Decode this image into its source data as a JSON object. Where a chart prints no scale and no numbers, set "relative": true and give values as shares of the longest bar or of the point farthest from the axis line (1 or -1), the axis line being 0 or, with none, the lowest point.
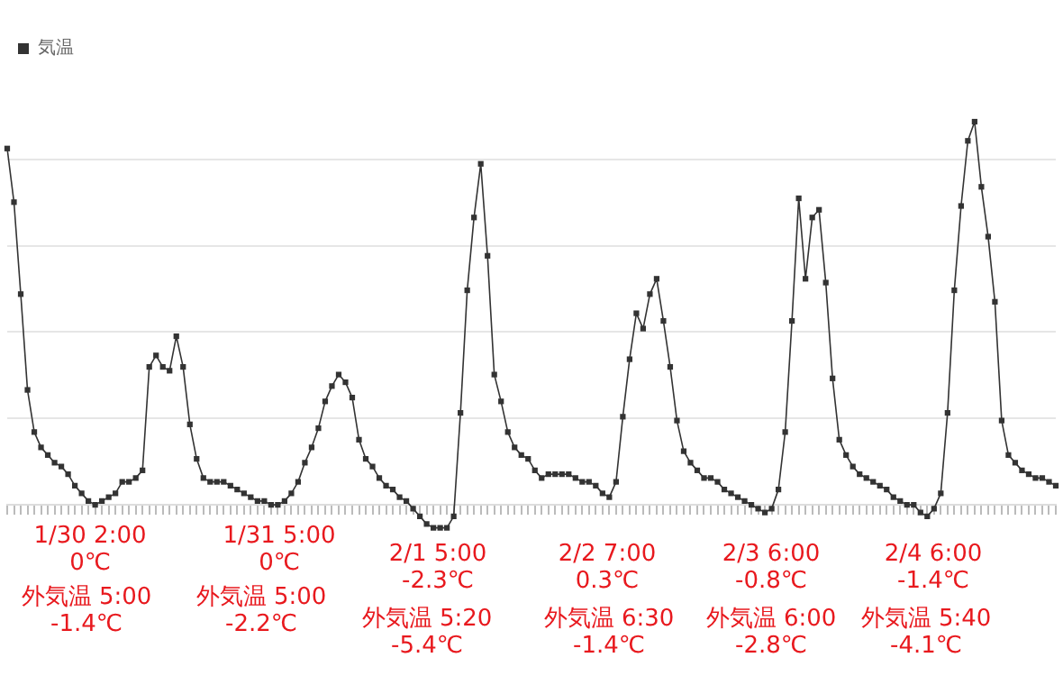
{
  "chart_data": {
    "type": "line",
    "relative": true,
    "grid": "y",
    "legend": "top left",
    "marker": "square",
    "line_style": "solid",
    "categories": [
      null,
      null,
      null,
      null,
      null,
      null,
      null,
      null,
      null,
      null,
      null,
      null,
      null,
      null,
      null,
      null,
      null,
      null,
      null,
      null,
      null,
      null,
      null,
      null,
      null,
      null,
      null,
      null,
      null,
      null,
      null,
      null,
      null,
      null,
      null,
      null,
      null,
      null,
      null,
      null,
      null,
      null,
      null,
      null,
      null,
      null,
      null,
      null,
      null,
      null,
      null,
      null,
      null,
      null,
      null,
      null,
      null,
      null,
      null,
      null,
      null,
      null,
      null,
      null,
      null,
      null,
      null,
      null,
      null,
      null,
      null,
      null,
      null,
      null,
      null,
      null,
      null,
      null,
      null,
      null,
      null,
      null,
      null,
      null,
      null,
      null,
      null,
      null,
      null,
      null,
      null,
      null,
      null,
      null,
      null,
      null,
      null,
      null,
      null,
      null,
      null,
      null,
      null,
      null,
      null,
      null,
      null,
      null,
      null,
      null,
      null,
      null,
      null,
      null,
      null,
      null,
      null,
      null,
      null,
      null,
      null,
      null,
      null,
      null,
      null,
      null,
      null,
      null,
      null,
      null,
      null,
      null,
      null,
      null,
      null,
      null,
      null,
      null,
      null,
      null,
      null,
      null,
      null,
      null,
      null,
      null,
      null,
      null,
      null,
      null,
      null,
      null,
      null,
      null,
      null,
      null
    ],
    "series": [
      {
        "name": "気温",
        "color": "#333333",
        "values": [
          0.93,
          0.79,
          0.55,
          0.3,
          0.19,
          0.15,
          0.13,
          0.11,
          0.1,
          0.08,
          0.05,
          0.03,
          0.01,
          0,
          0.01,
          0.02,
          0.03,
          0.06,
          0.06,
          0.07,
          0.09,
          0.36,
          0.39,
          0.36,
          0.35,
          0.44,
          0.36,
          0.21,
          0.12,
          0.07,
          0.06,
          0.06,
          0.06,
          0.05,
          0.04,
          0.03,
          0.02,
          0.01,
          0.01,
          0,
          0,
          0.01,
          0.03,
          0.06,
          0.11,
          0.15,
          0.2,
          0.27,
          0.31,
          0.34,
          0.32,
          0.28,
          0.17,
          0.12,
          0.1,
          0.07,
          0.05,
          0.04,
          0.02,
          0.01,
          -0.01,
          -0.03,
          -0.05,
          -0.06,
          -0.06,
          -0.06,
          -0.03,
          0.24,
          0.56,
          0.75,
          0.89,
          0.65,
          0.34,
          0.27,
          0.19,
          0.15,
          0.13,
          0.12,
          0.09,
          0.07,
          0.08,
          0.08,
          0.08,
          0.08,
          0.07,
          0.06,
          0.06,
          0.05,
          0.03,
          0.02,
          0.06,
          0.23,
          0.38,
          0.5,
          0.46,
          0.55,
          0.59,
          0.48,
          0.36,
          0.22,
          0.14,
          0.11,
          0.09,
          0.07,
          0.07,
          0.06,
          0.04,
          0.03,
          0.02,
          0.01,
          0,
          -0.01,
          -0.02,
          -0.01,
          0.04,
          0.19,
          0.48,
          0.8,
          0.59,
          0.75,
          0.77,
          0.58,
          0.33,
          0.17,
          0.13,
          0.1,
          0.08,
          0.07,
          0.06,
          0.05,
          0.04,
          0.02,
          0.01,
          0,
          0,
          -0.02,
          -0.03,
          -0.01,
          0.03,
          0.24,
          0.56,
          0.78,
          0.95,
          1,
          0.83,
          0.7,
          0.53,
          0.22,
          0.13,
          0.11,
          0.09,
          0.08,
          0.07,
          0.07,
          0.06,
          0.05
        ]
      }
    ],
    "annotations": [
      "1/30 2:00\n0℃",
      "外気温 5:00\n-1.4℃",
      "1/31 5:00\n0℃",
      "外気温 5:00\n-2.2℃",
      "2/1 5:00\n-2.3℃",
      "外気温 5:20\n-5.4℃",
      "2/2 7:00\n0.3℃",
      "外気温 6:30\n-1.4℃",
      "2/3 6:00\n-0.8℃",
      "外気温 6:00\n-2.8℃",
      "2/4 6:00\n-1.4℃",
      "外気温 5:40\n-4.1℃"
    ]
  }
}
